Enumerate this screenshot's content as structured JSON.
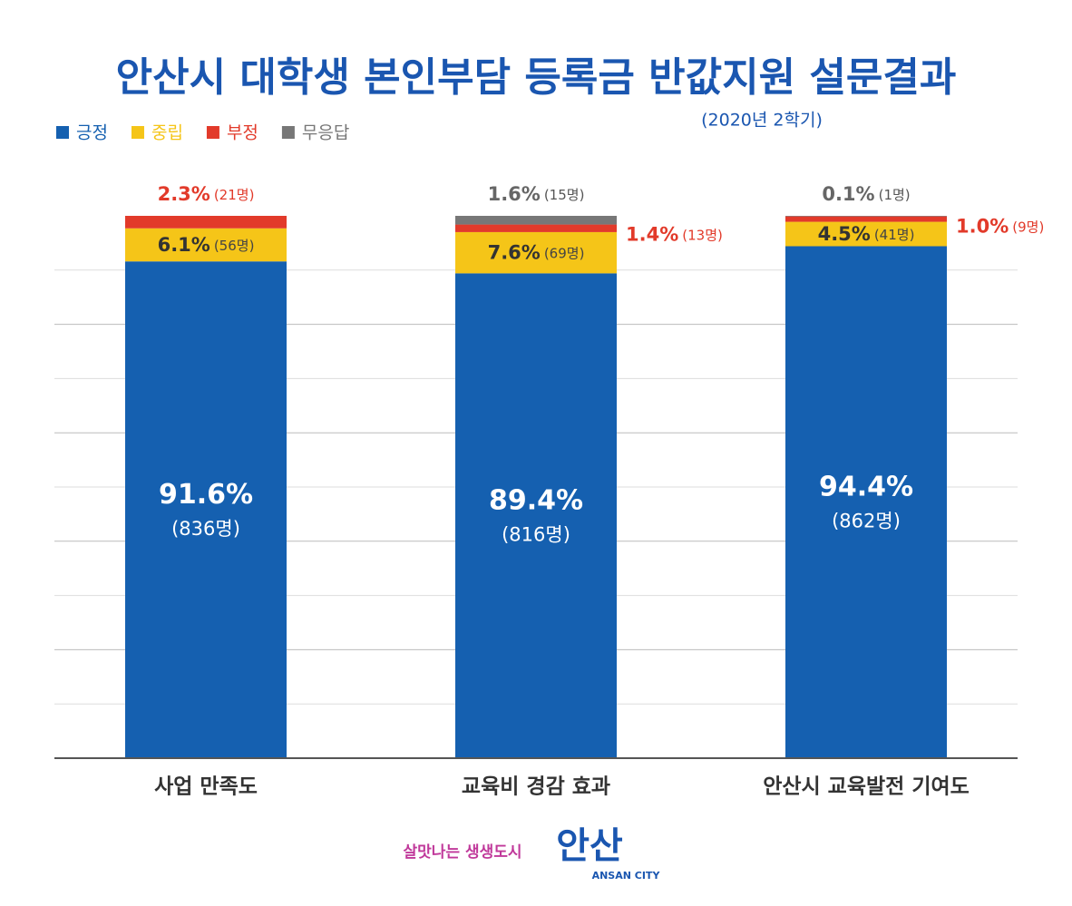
{
  "chart_data": {
    "type": "stacked-bar",
    "title": "안산시 대학생 본인부담 등록금 반값지원 설문결과",
    "subtitle": "(2020년 2학기)",
    "categories": [
      "사업 만족도",
      "교육비 경감 효과",
      "안산시 교육발전 기여도"
    ],
    "series": [
      {
        "name": "긍정",
        "color": "#1560b0",
        "values": [
          91.6,
          89.4,
          94.4
        ],
        "value_labels": [
          "91.6%",
          "89.4%",
          "94.4%"
        ],
        "count_labels": [
          "(836명)",
          "(816명)",
          "(862명)"
        ]
      },
      {
        "name": "중립",
        "color": "#f5c518",
        "values": [
          6.1,
          7.6,
          4.5
        ],
        "value_labels": [
          "6.1%",
          "7.6%",
          "4.5%"
        ],
        "count_labels": [
          "(56명)",
          "(69명)",
          "(41명)"
        ]
      },
      {
        "name": "부정",
        "color": "#e23a2a",
        "values": [
          2.3,
          1.4,
          1.0
        ],
        "value_labels": [
          "2.3%",
          "1.4%",
          "1.0%"
        ],
        "count_labels": [
          "(21명)",
          "(13명)",
          "(9명)"
        ]
      },
      {
        "name": "무응답",
        "color": "#777777",
        "values": [
          null,
          1.6,
          0.1
        ],
        "value_labels": [
          null,
          "1.6%",
          "0.1%"
        ],
        "count_labels": [
          null,
          "(15명)",
          "(1명)"
        ]
      }
    ],
    "ylim": [
      0,
      100
    ],
    "gridlines": [
      10,
      20,
      30,
      40,
      50,
      60,
      70,
      80,
      90
    ],
    "grid": true
  },
  "footer": {
    "slogan": "살맛나는 생생도시",
    "logo": "안산",
    "city": "ANSAN CITY"
  }
}
